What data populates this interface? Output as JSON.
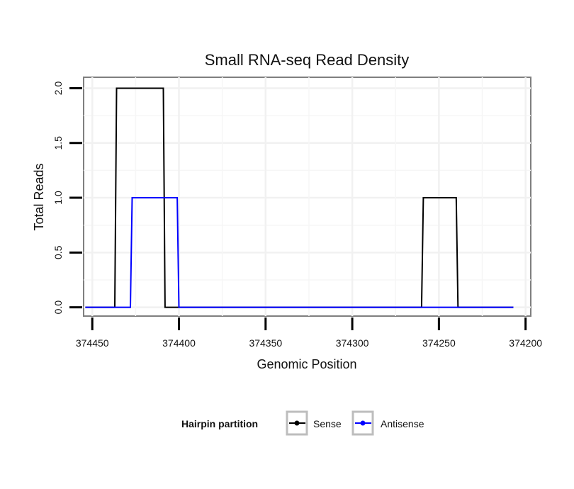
{
  "chart_data": {
    "type": "line",
    "title": "Small RNA-seq Read Density",
    "xlabel": "Genomic Position",
    "ylabel": "Total Reads",
    "x_reversed": true,
    "xlim": [
      374455,
      374197
    ],
    "ylim": [
      -0.08,
      2.1
    ],
    "x_ticks": [
      374450,
      374400,
      374350,
      374300,
      374250,
      374200
    ],
    "x_tick_labels": [
      "374450",
      "374400",
      "374350",
      "374300",
      "374250",
      "374200"
    ],
    "y_ticks": [
      0,
      0.5,
      1,
      1.5,
      2
    ],
    "y_tick_labels": [
      "0.0",
      "0.5",
      "1.0",
      "1.5",
      "2.0"
    ],
    "grid": true,
    "legend": {
      "title": "Hairpin partition",
      "placement": "bottom"
    },
    "series": [
      {
        "name": "Sense",
        "color": "#000000",
        "points": [
          [
            374454,
            0
          ],
          [
            374437,
            0
          ],
          [
            374436,
            2
          ],
          [
            374409,
            2
          ],
          [
            374408,
            0
          ],
          [
            374260,
            0
          ],
          [
            374259,
            1
          ],
          [
            374240,
            1
          ],
          [
            374239,
            0
          ],
          [
            374207,
            0
          ]
        ]
      },
      {
        "name": "Antisense",
        "color": "#0000ff",
        "points": [
          [
            374454,
            0
          ],
          [
            374428,
            0
          ],
          [
            374427,
            1
          ],
          [
            374401,
            1
          ],
          [
            374400,
            0
          ],
          [
            374260,
            0
          ],
          [
            374239,
            0
          ],
          [
            374207,
            0
          ]
        ]
      }
    ]
  }
}
